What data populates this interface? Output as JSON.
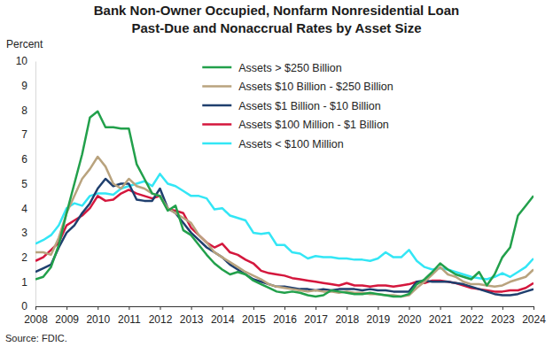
{
  "chart_data": {
    "type": "line",
    "title": "Bank Non-Owner Occupied, Nonfarm Nonresidential Loan\nPast-Due and Nonaccrual Rates by Asset Size",
    "y_label": "Percent",
    "source": "Source: FDIC.",
    "x": [
      2008,
      2008.25,
      2008.5,
      2008.75,
      2009,
      2009.25,
      2009.5,
      2009.75,
      2010,
      2010.25,
      2010.5,
      2010.75,
      2011,
      2011.25,
      2011.5,
      2011.75,
      2012,
      2012.25,
      2012.5,
      2012.75,
      2013,
      2013.25,
      2013.5,
      2013.75,
      2014,
      2014.25,
      2014.5,
      2014.75,
      2015,
      2015.25,
      2015.5,
      2015.75,
      2016,
      2016.25,
      2016.5,
      2016.75,
      2017,
      2017.25,
      2017.5,
      2017.75,
      2018,
      2018.25,
      2018.5,
      2018.75,
      2019,
      2019.25,
      2019.5,
      2019.75,
      2020,
      2020.25,
      2020.5,
      2020.75,
      2021,
      2021.25,
      2021.5,
      2021.75,
      2022,
      2022.25,
      2022.5,
      2022.75,
      2023,
      2023.25,
      2023.5,
      2023.75,
      2024
    ],
    "series": [
      {
        "name": "Assets > $250 Billion",
        "color": "#22a04b",
        "values": [
          1.1,
          1.2,
          1.6,
          2.5,
          3.8,
          5.0,
          6.2,
          7.7,
          7.95,
          7.3,
          7.3,
          7.25,
          7.25,
          5.8,
          5.2,
          4.6,
          4.5,
          3.9,
          4.1,
          3.1,
          2.9,
          2.5,
          2.1,
          1.75,
          1.5,
          1.3,
          1.4,
          1.3,
          1.05,
          0.9,
          0.75,
          0.6,
          0.55,
          0.6,
          0.55,
          0.45,
          0.4,
          0.45,
          0.65,
          0.6,
          0.55,
          0.5,
          0.5,
          0.55,
          0.5,
          0.45,
          0.4,
          0.4,
          0.5,
          0.9,
          1.1,
          1.4,
          1.75,
          1.5,
          1.3,
          1.2,
          1.1,
          1.4,
          0.85,
          1.3,
          2.0,
          2.4,
          3.7,
          4.1,
          4.5
        ]
      },
      {
        "name": "Assets $10 Billion - $250 Billion",
        "color": "#b9a37e",
        "values": [
          2.2,
          2.2,
          2.1,
          2.8,
          3.8,
          4.5,
          5.2,
          5.6,
          6.1,
          5.7,
          5.0,
          4.8,
          5.2,
          4.9,
          4.8,
          4.6,
          4.5,
          4.0,
          3.8,
          3.6,
          3.4,
          2.9,
          2.6,
          2.2,
          2.0,
          1.8,
          1.6,
          1.4,
          1.25,
          1.1,
          0.9,
          0.8,
          0.75,
          0.7,
          0.65,
          0.6,
          0.65,
          0.6,
          0.6,
          0.55,
          0.6,
          0.55,
          0.55,
          0.5,
          0.5,
          0.45,
          0.45,
          0.4,
          0.45,
          0.75,
          1.0,
          1.3,
          1.6,
          1.3,
          1.2,
          1.0,
          0.9,
          0.9,
          0.85,
          0.8,
          0.85,
          1.0,
          1.1,
          1.2,
          1.5
        ]
      },
      {
        "name": "Assets $1 Billion - $10 Billion",
        "color": "#1f3f6e",
        "values": [
          1.4,
          1.55,
          1.7,
          2.4,
          3.0,
          3.3,
          3.8,
          4.2,
          4.8,
          5.2,
          4.9,
          5.0,
          5.0,
          4.35,
          4.3,
          4.3,
          4.8,
          4.0,
          3.8,
          3.4,
          3.0,
          2.7,
          2.4,
          2.2,
          2.0,
          1.7,
          1.5,
          1.3,
          1.1,
          1.0,
          0.9,
          0.8,
          0.8,
          0.75,
          0.7,
          0.7,
          0.65,
          0.7,
          0.65,
          0.7,
          0.7,
          0.7,
          0.65,
          0.7,
          0.65,
          0.65,
          0.6,
          0.6,
          0.6,
          1.0,
          1.05,
          1.0,
          1.0,
          1.0,
          0.95,
          0.9,
          0.8,
          0.7,
          0.6,
          0.5,
          0.45,
          0.45,
          0.5,
          0.6,
          0.7
        ]
      },
      {
        "name": "Assets $100 Million - $1 Billion",
        "color": "#d4173d",
        "values": [
          1.85,
          2.0,
          2.3,
          2.6,
          3.3,
          3.5,
          3.7,
          4.0,
          4.5,
          4.3,
          4.35,
          4.6,
          4.75,
          4.6,
          4.5,
          4.4,
          4.5,
          3.95,
          3.9,
          3.8,
          3.2,
          2.9,
          2.6,
          2.4,
          2.55,
          2.2,
          2.1,
          1.9,
          1.75,
          1.45,
          1.35,
          1.3,
          1.25,
          1.15,
          1.1,
          1.05,
          1.0,
          0.95,
          0.9,
          0.85,
          0.95,
          0.85,
          0.85,
          0.8,
          0.85,
          0.85,
          0.8,
          0.85,
          0.9,
          1.0,
          0.95,
          1.05,
          1.05,
          1.0,
          0.95,
          0.85,
          0.75,
          0.7,
          0.65,
          0.6,
          0.6,
          0.65,
          0.65,
          0.75,
          0.95
        ]
      },
      {
        "name": "Assets < $100 Million",
        "color": "#33e6f5",
        "values": [
          2.55,
          2.7,
          2.9,
          3.3,
          4.0,
          4.2,
          4.1,
          4.5,
          4.6,
          4.6,
          4.55,
          4.8,
          4.9,
          5.0,
          5.1,
          4.9,
          5.4,
          5.0,
          4.9,
          4.7,
          4.5,
          4.5,
          4.4,
          3.95,
          4.0,
          3.7,
          3.6,
          3.5,
          3.0,
          2.95,
          3.0,
          2.5,
          2.5,
          2.2,
          2.15,
          1.95,
          2.05,
          2.0,
          2.0,
          1.95,
          1.95,
          1.9,
          1.9,
          1.85,
          1.95,
          2.2,
          2.0,
          2.0,
          2.3,
          1.85,
          1.6,
          1.5,
          1.55,
          1.5,
          1.4,
          1.3,
          1.2,
          1.15,
          1.1,
          1.2,
          1.35,
          1.2,
          1.4,
          1.6,
          1.95
        ]
      }
    ],
    "xlim": [
      2008,
      2024
    ],
    "xticks": [
      2008,
      2009,
      2010,
      2011,
      2012,
      2013,
      2014,
      2015,
      2016,
      2017,
      2018,
      2019,
      2020,
      2021,
      2022,
      2023,
      2024
    ],
    "ylim": [
      0,
      10
    ],
    "yticks": [
      0,
      1,
      2,
      3,
      4,
      5,
      6,
      7,
      8,
      9,
      10
    ],
    "grid": false,
    "legend": "top"
  }
}
